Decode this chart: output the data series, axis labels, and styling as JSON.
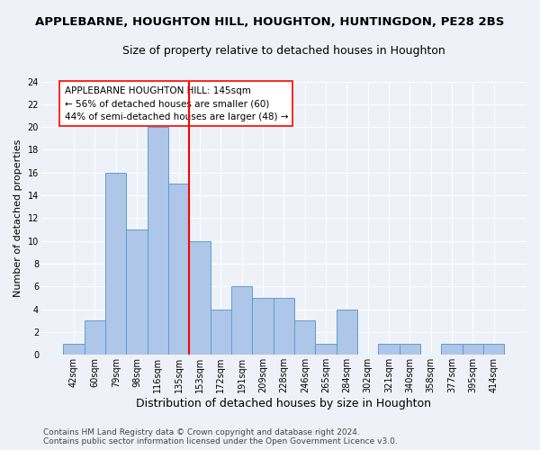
{
  "title": "APPLEBARNE, HOUGHTON HILL, HOUGHTON, HUNTINGDON, PE28 2BS",
  "subtitle": "Size of property relative to detached houses in Houghton",
  "xlabel": "Distribution of detached houses by size in Houghton",
  "ylabel": "Number of detached properties",
  "categories": [
    "42sqm",
    "60sqm",
    "79sqm",
    "98sqm",
    "116sqm",
    "135sqm",
    "153sqm",
    "172sqm",
    "191sqm",
    "209sqm",
    "228sqm",
    "246sqm",
    "265sqm",
    "284sqm",
    "302sqm",
    "321sqm",
    "340sqm",
    "358sqm",
    "377sqm",
    "395sqm",
    "414sqm"
  ],
  "values": [
    1,
    3,
    16,
    11,
    20,
    15,
    10,
    4,
    6,
    5,
    5,
    3,
    1,
    4,
    0,
    1,
    1,
    0,
    1,
    1,
    1
  ],
  "bar_color": "#aec6e8",
  "bar_edge_color": "#5a9fd4",
  "vline_color": "red",
  "ylim": [
    0,
    24
  ],
  "yticks": [
    0,
    2,
    4,
    6,
    8,
    10,
    12,
    14,
    16,
    18,
    20,
    22,
    24
  ],
  "annotation_text": "APPLEBARNE HOUGHTON HILL: 145sqm\n← 56% of detached houses are smaller (60)\n44% of semi-detached houses are larger (48) →",
  "annotation_box_color": "#ffffff",
  "annotation_box_edge": "red",
  "footer_text": "Contains HM Land Registry data © Crown copyright and database right 2024.\nContains public sector information licensed under the Open Government Licence v3.0.",
  "background_color": "#eef2f8",
  "grid_color": "#ffffff",
  "title_fontsize": 9.5,
  "subtitle_fontsize": 9,
  "xlabel_fontsize": 9,
  "ylabel_fontsize": 8,
  "tick_fontsize": 7,
  "footer_fontsize": 6.5,
  "annotation_fontsize": 7.5
}
